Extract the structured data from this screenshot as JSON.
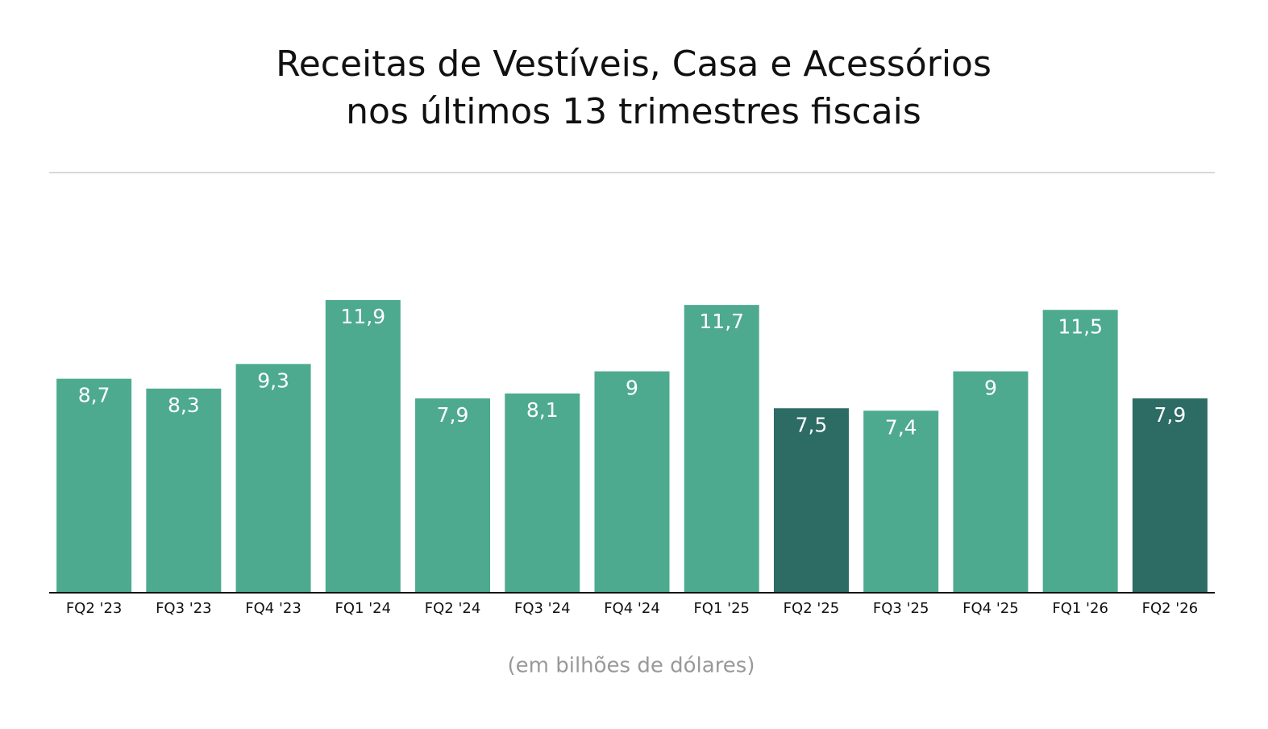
{
  "chart_data": {
    "type": "bar",
    "title": [
      "Receitas de Vestíveis, Casa e Acessórios",
      "nos últimos 13 trimestres fiscais"
    ],
    "note": "(em bilhões de dólares)",
    "categories": [
      "FQ2 '23",
      "FQ3 '23",
      "FQ4 '23",
      "FQ1 '24",
      "FQ2 '24",
      "FQ3 '24",
      "FQ4 '24",
      "FQ1 '25",
      "FQ2 '25",
      "FQ3 '25",
      "FQ4 '25",
      "FQ1 '26",
      "FQ2 '26"
    ],
    "values": [
      8.7,
      8.3,
      9.3,
      11.9,
      7.9,
      8.1,
      9,
      11.7,
      7.5,
      7.4,
      9,
      11.5,
      7.9
    ],
    "value_labels": [
      "8,7",
      "8,3",
      "9,3",
      "11,9",
      "7,9",
      "8,1",
      "9",
      "11,7",
      "7,5",
      "7,4",
      "9",
      "11,5",
      "7,9"
    ],
    "colors": [
      "#4eaa8f",
      "#4eaa8f",
      "#4eaa8f",
      "#4eaa8f",
      "#4eaa8f",
      "#4eaa8f",
      "#4eaa8f",
      "#4eaa8f",
      "#2d6b65",
      "#4eaa8f",
      "#4eaa8f",
      "#4eaa8f",
      "#2d6b65"
    ]
  }
}
